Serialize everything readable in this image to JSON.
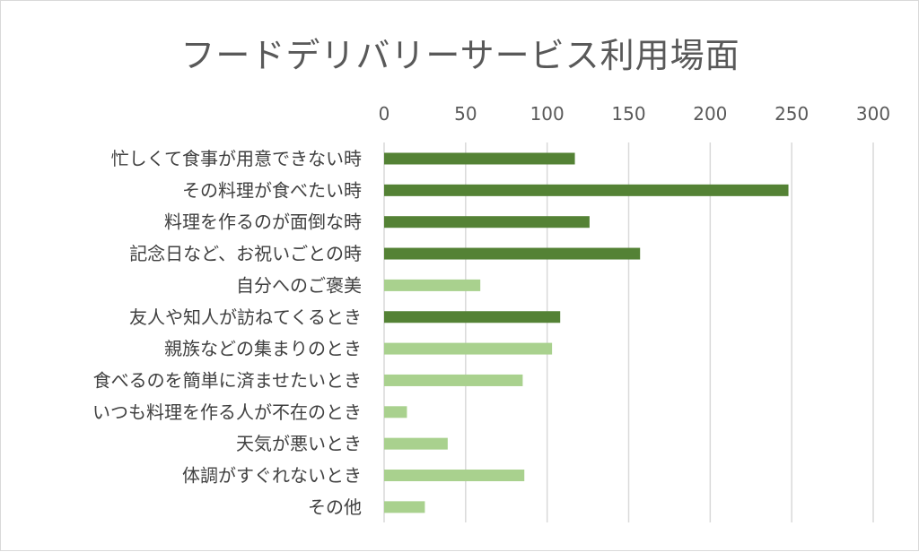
{
  "chart_data": {
    "type": "bar",
    "orientation": "horizontal",
    "title": "フードデリバリーサービス利用場面",
    "xlim": [
      0,
      300
    ],
    "xticks": [
      0,
      50,
      100,
      150,
      200,
      250,
      300
    ],
    "x_axis_position": "top",
    "grid": true,
    "colors": {
      "dark": "#548235",
      "light": "#a9d18e"
    },
    "categories": [
      "忙しくて食事が用意できない時",
      "その料理が食べたい時",
      "料理を作るのが面倒な時",
      "記念日など、お祝いごとの時",
      "自分へのご褒美",
      "友人や知人が訪ねてくるとき",
      "親族などの集まりのとき",
      "食べるのを簡単に済ませたいとき",
      "いつも料理を作る人が不在のとき",
      "天気が悪いとき",
      "体調がすぐれないとき",
      "その他"
    ],
    "values": [
      117,
      248,
      126,
      157,
      59,
      108,
      103,
      85,
      14,
      39,
      86,
      25
    ],
    "bar_colors": [
      "dark",
      "dark",
      "dark",
      "dark",
      "light",
      "dark",
      "light",
      "light",
      "light",
      "light",
      "light",
      "light"
    ]
  }
}
